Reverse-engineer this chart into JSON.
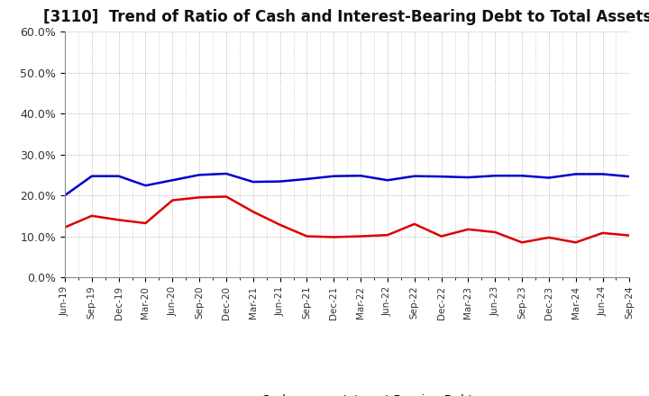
{
  "title": "[3110]  Trend of Ratio of Cash and Interest-Bearing Debt to Total Assets",
  "x_labels": [
    "Jun-19",
    "Sep-19",
    "Dec-19",
    "Mar-20",
    "Jun-20",
    "Sep-20",
    "Dec-20",
    "Mar-21",
    "Jun-21",
    "Sep-21",
    "Dec-21",
    "Mar-22",
    "Jun-22",
    "Sep-22",
    "Dec-22",
    "Mar-23",
    "Jun-23",
    "Sep-23",
    "Dec-23",
    "Mar-24",
    "Jun-24",
    "Sep-24"
  ],
  "cash": [
    0.122,
    0.15,
    0.14,
    0.132,
    0.188,
    0.195,
    0.197,
    0.16,
    0.128,
    0.1,
    0.098,
    0.1,
    0.103,
    0.13,
    0.1,
    0.117,
    0.11,
    0.085,
    0.097,
    0.085,
    0.108,
    0.102
  ],
  "ibd": [
    0.2,
    0.247,
    0.247,
    0.224,
    0.237,
    0.25,
    0.253,
    0.233,
    0.234,
    0.24,
    0.247,
    0.248,
    0.237,
    0.247,
    0.246,
    0.244,
    0.248,
    0.248,
    0.243,
    0.252,
    0.252,
    0.246
  ],
  "cash_color": "#dd0000",
  "ibd_color": "#0000cc",
  "ylim": [
    0.0,
    0.6
  ],
  "yticks": [
    0.0,
    0.1,
    0.2,
    0.3,
    0.4,
    0.5,
    0.6
  ],
  "ytick_labels": [
    "0.0%",
    "10.0%",
    "20.0%",
    "30.0%",
    "40.0%",
    "50.0%",
    "60.0%"
  ],
  "background_color": "#ffffff",
  "grid_color": "#999999",
  "title_fontsize": 12,
  "legend_cash": "Cash",
  "legend_ibd": "Interest-Bearing Debt",
  "linewidth": 1.8
}
